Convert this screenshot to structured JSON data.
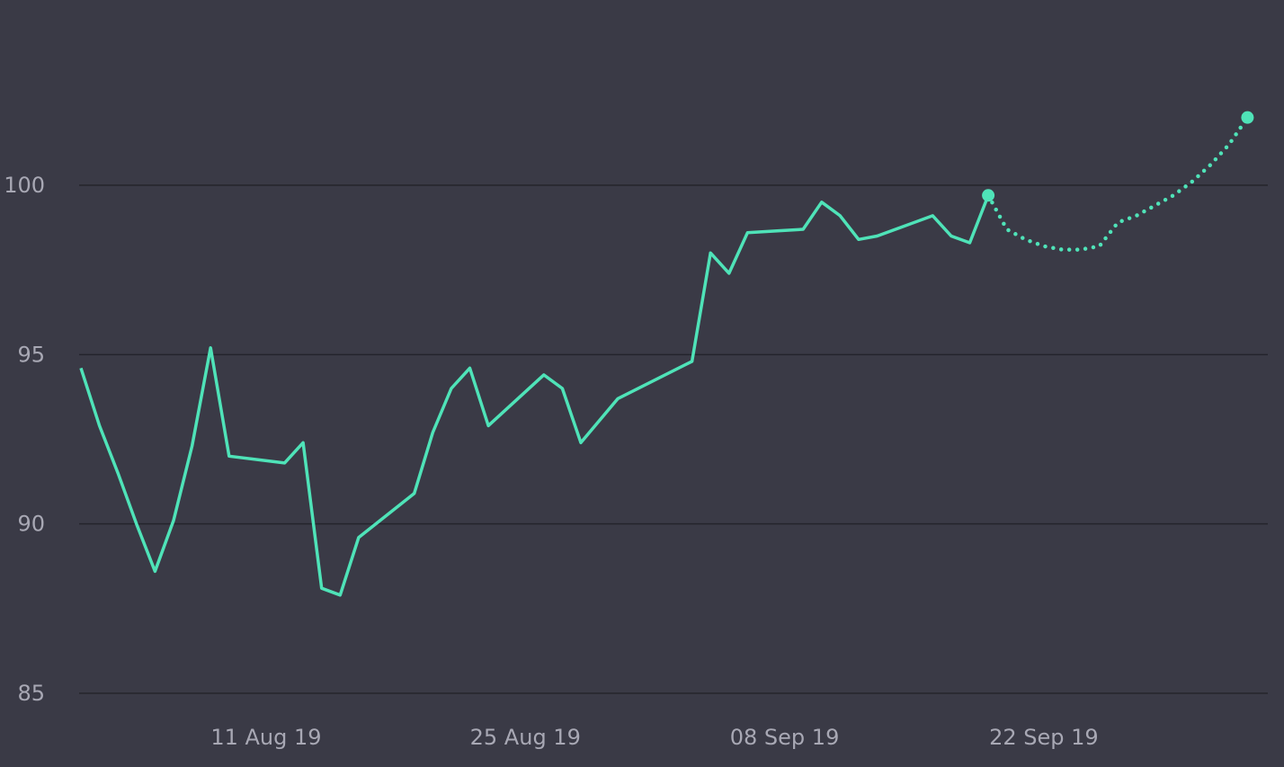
{
  "colors": {
    "background": "#3a3a46",
    "line": "#4fe3b8",
    "grid": "#24242c",
    "tick_text": "#a8a8b4"
  },
  "chart_data": {
    "type": "line",
    "y_ticks": [
      "85",
      "90",
      "95",
      "100"
    ],
    "x_ticks": [
      "11 Aug 19",
      "25 Aug 19",
      "08 Sep 19",
      "22 Sep 19"
    ],
    "ylim": [
      85,
      103
    ],
    "xlim": [
      "2019-08-01",
      "2019-10-04"
    ],
    "grid": true,
    "series": [
      {
        "style": "solid",
        "points": [
          [
            "2019-08-01",
            94.6
          ],
          [
            "2019-08-02",
            92.9
          ],
          [
            "2019-08-03",
            91.5
          ],
          [
            "2019-08-04",
            90.0
          ],
          [
            "2019-08-05",
            88.6
          ],
          [
            "2019-08-06",
            90.1
          ],
          [
            "2019-08-07",
            92.3
          ],
          [
            "2019-08-08",
            95.2
          ],
          [
            "2019-08-09",
            92.0
          ],
          [
            "2019-08-12",
            91.8
          ],
          [
            "2019-08-13",
            92.4
          ],
          [
            "2019-08-14",
            88.1
          ],
          [
            "2019-08-15",
            87.9
          ],
          [
            "2019-08-16",
            89.6
          ],
          [
            "2019-08-19",
            90.9
          ],
          [
            "2019-08-20",
            92.7
          ],
          [
            "2019-08-21",
            94.0
          ],
          [
            "2019-08-22",
            94.6
          ],
          [
            "2019-08-23",
            92.9
          ],
          [
            "2019-08-26",
            94.4
          ],
          [
            "2019-08-27",
            94.0
          ],
          [
            "2019-08-28",
            92.4
          ],
          [
            "2019-08-30",
            93.7
          ],
          [
            "2019-09-03",
            94.8
          ],
          [
            "2019-09-04",
            98.0
          ],
          [
            "2019-09-05",
            97.4
          ],
          [
            "2019-09-06",
            98.6
          ],
          [
            "2019-09-09",
            98.7
          ],
          [
            "2019-09-10",
            99.5
          ],
          [
            "2019-09-11",
            99.1
          ],
          [
            "2019-09-12",
            98.4
          ],
          [
            "2019-09-13",
            98.5
          ],
          [
            "2019-09-16",
            99.1
          ],
          [
            "2019-09-17",
            98.5
          ],
          [
            "2019-09-18",
            98.3
          ],
          [
            "2019-09-19",
            99.7
          ]
        ]
      },
      {
        "style": "dotted",
        "points": [
          [
            "2019-09-19",
            99.7
          ],
          [
            "2019-09-20",
            98.7
          ],
          [
            "2019-09-21",
            98.4
          ],
          [
            "2019-09-22",
            98.2
          ],
          [
            "2019-09-23",
            98.1
          ],
          [
            "2019-09-24",
            98.1
          ],
          [
            "2019-09-25",
            98.2
          ],
          [
            "2019-09-26",
            98.9
          ],
          [
            "2019-09-27",
            99.1
          ],
          [
            "2019-09-28",
            99.4
          ],
          [
            "2019-09-29",
            99.7
          ],
          [
            "2019-09-30",
            100.1
          ],
          [
            "2019-10-01",
            100.6
          ],
          [
            "2019-10-02",
            101.2
          ],
          [
            "2019-10-03",
            102.0
          ]
        ]
      }
    ],
    "markers": [
      [
        "2019-09-19",
        99.7
      ],
      [
        "2019-10-03",
        102.0
      ]
    ]
  }
}
